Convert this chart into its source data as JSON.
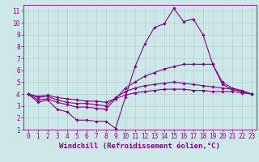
{
  "xlabel": "Windchill (Refroidissement éolien,°C)",
  "bg_color": "#cce8e8",
  "line_color": "#880088",
  "spine_color": "#880088",
  "xlim": [
    -0.5,
    23.5
  ],
  "ylim": [
    1,
    11.5
  ],
  "xticks": [
    0,
    1,
    2,
    3,
    4,
    5,
    6,
    7,
    8,
    9,
    10,
    11,
    12,
    13,
    14,
    15,
    16,
    17,
    18,
    19,
    20,
    21,
    22,
    23
  ],
  "yticks": [
    1,
    2,
    3,
    4,
    5,
    6,
    7,
    8,
    9,
    10,
    11
  ],
  "lines": [
    {
      "x": [
        0,
        1,
        2,
        3,
        4,
        5,
        6,
        7,
        8,
        9,
        10,
        11,
        12,
        13,
        14,
        15,
        16,
        17,
        18,
        19,
        20,
        21,
        22,
        23
      ],
      "y": [
        4.0,
        3.3,
        3.5,
        2.7,
        2.5,
        1.8,
        1.8,
        1.7,
        1.7,
        1.1,
        3.7,
        6.3,
        8.2,
        9.6,
        9.9,
        11.2,
        10.1,
        10.3,
        9.0,
        6.5,
        4.8,
        4.4,
        4.2,
        4.0
      ]
    },
    {
      "x": [
        0,
        1,
        2,
        3,
        4,
        5,
        6,
        7,
        8,
        9,
        10,
        11,
        12,
        13,
        14,
        15,
        16,
        17,
        18,
        19,
        20,
        21,
        22,
        23
      ],
      "y": [
        4.0,
        3.5,
        3.6,
        3.3,
        3.1,
        2.9,
        2.9,
        2.8,
        2.7,
        3.6,
        4.5,
        5.0,
        5.5,
        5.8,
        6.1,
        6.3,
        6.5,
        6.5,
        6.5,
        6.5,
        5.0,
        4.5,
        4.3,
        4.0
      ]
    },
    {
      "x": [
        0,
        1,
        2,
        3,
        4,
        5,
        6,
        7,
        8,
        9,
        10,
        11,
        12,
        13,
        14,
        15,
        16,
        17,
        18,
        19,
        20,
        21,
        22,
        23
      ],
      "y": [
        4.0,
        3.7,
        3.8,
        3.5,
        3.3,
        3.2,
        3.2,
        3.1,
        3.0,
        3.7,
        4.2,
        4.5,
        4.7,
        4.8,
        4.9,
        5.0,
        4.9,
        4.8,
        4.7,
        4.6,
        4.5,
        4.4,
        4.2,
        4.0
      ]
    },
    {
      "x": [
        0,
        1,
        2,
        3,
        4,
        5,
        6,
        7,
        8,
        9,
        10,
        11,
        12,
        13,
        14,
        15,
        16,
        17,
        18,
        19,
        20,
        21,
        22,
        23
      ],
      "y": [
        4.0,
        3.8,
        3.9,
        3.7,
        3.6,
        3.5,
        3.4,
        3.4,
        3.3,
        3.6,
        3.9,
        4.1,
        4.2,
        4.3,
        4.4,
        4.4,
        4.4,
        4.3,
        4.3,
        4.2,
        4.2,
        4.2,
        4.1,
        4.0
      ]
    }
  ],
  "marker": "D",
  "markersize": 1.8,
  "linewidth": 0.8,
  "grid_color": "#aacccc",
  "tick_fontsize": 5.5,
  "xlabel_fontsize": 6.5
}
